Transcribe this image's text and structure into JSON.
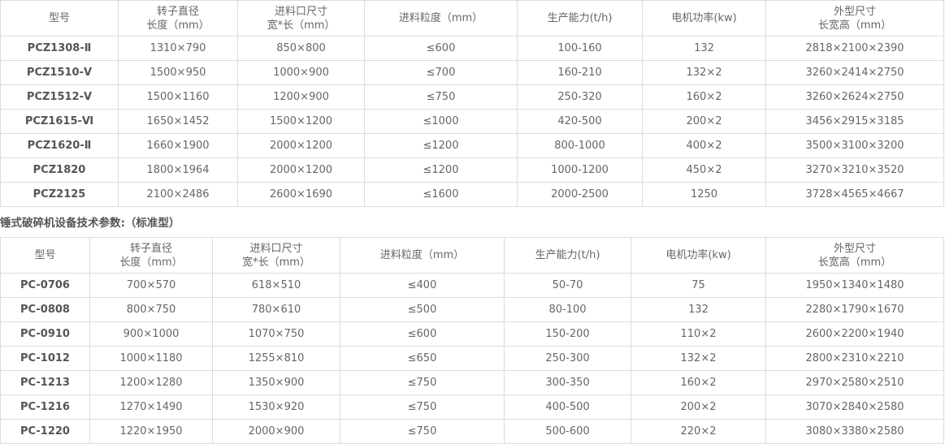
{
  "tables": [
    {
      "headers": [
        [
          "型号"
        ],
        [
          "转子直径",
          "长度（mm）"
        ],
        [
          "进料口尺寸",
          "宽*长（mm）"
        ],
        [
          "进料粒度（mm）"
        ],
        [
          "生产能力(t/h)"
        ],
        [
          "电机功率(kw)"
        ],
        [
          "外型尺寸",
          "长宽高（mm）"
        ]
      ],
      "rows": [
        [
          "PCZ1308-Ⅱ",
          "1310×790",
          "850×800",
          "≤600",
          "100-160",
          "132",
          "2818×2100×2390"
        ],
        [
          "PCZ1510-Ⅴ",
          "1500×950",
          "1000×900",
          "≤700",
          "160-210",
          "132×2",
          "3260×2414×2750"
        ],
        [
          "PCZ1512-Ⅴ",
          "1500×1160",
          "1200×900",
          "≤750",
          "250-320",
          "160×2",
          "3260×2624×2750"
        ],
        [
          "PCZ1615-Ⅵ",
          "1650×1452",
          "1500×1200",
          "≤1000",
          "420-500",
          "200×2",
          "3456×2915×3185"
        ],
        [
          "PCZ1620-Ⅱ",
          "1660×1900",
          "2000×1200",
          "≤1200",
          "800-1000",
          "400×2",
          "3500×3100×3200"
        ],
        [
          "PCZ1820",
          "1800×1964",
          "2000×1200",
          "≤1200",
          "1000-1200",
          "450×2",
          "3270×3210×3520"
        ],
        [
          "PCZ2125",
          "2100×2486",
          "2600×1690",
          "≤1600",
          "2000-2500",
          "1250",
          "3728×4565×4667"
        ]
      ]
    },
    {
      "headers": [
        [
          "型号"
        ],
        [
          "转子直径",
          "长度（mm）"
        ],
        [
          "进料口尺寸",
          "宽*长（mm）"
        ],
        [
          "进料粒度（mm）"
        ],
        [
          "生产能力(t/h)"
        ],
        [
          "电机功率(kw)"
        ],
        [
          "外型尺寸",
          "长宽高（mm）"
        ]
      ],
      "rows": [
        [
          "PC-0706",
          "700×570",
          "618×510",
          "≤400",
          "50-70",
          "75",
          "1950×1340×1480"
        ],
        [
          "PC-0808",
          "800×750",
          "780×610",
          "≤500",
          "80-100",
          "132",
          "2280×1790×1670"
        ],
        [
          "PC-0910",
          "900×1000",
          "1070×750",
          "≤600",
          "150-200",
          "110×2",
          "2600×2200×1940"
        ],
        [
          "PC-1012",
          "1000×1180",
          "1255×810",
          "≤650",
          "250-300",
          "132×2",
          "2800×2310×2210"
        ],
        [
          "PC-1213",
          "1200×1280",
          "1350×900",
          "≤750",
          "300-350",
          "160×2",
          "2970×2580×2510"
        ],
        [
          "PC-1216",
          "1270×1490",
          "1530×920",
          "≤750",
          "400-500",
          "200×2",
          "3070×2840×2580"
        ],
        [
          "PC-1220",
          "1220×1950",
          "2000×900",
          "≤750",
          "500-600",
          "220×2",
          "3080×3380×2580"
        ]
      ]
    }
  ],
  "section_heading": "锤式破碎机设备技术参数:（标准型）"
}
